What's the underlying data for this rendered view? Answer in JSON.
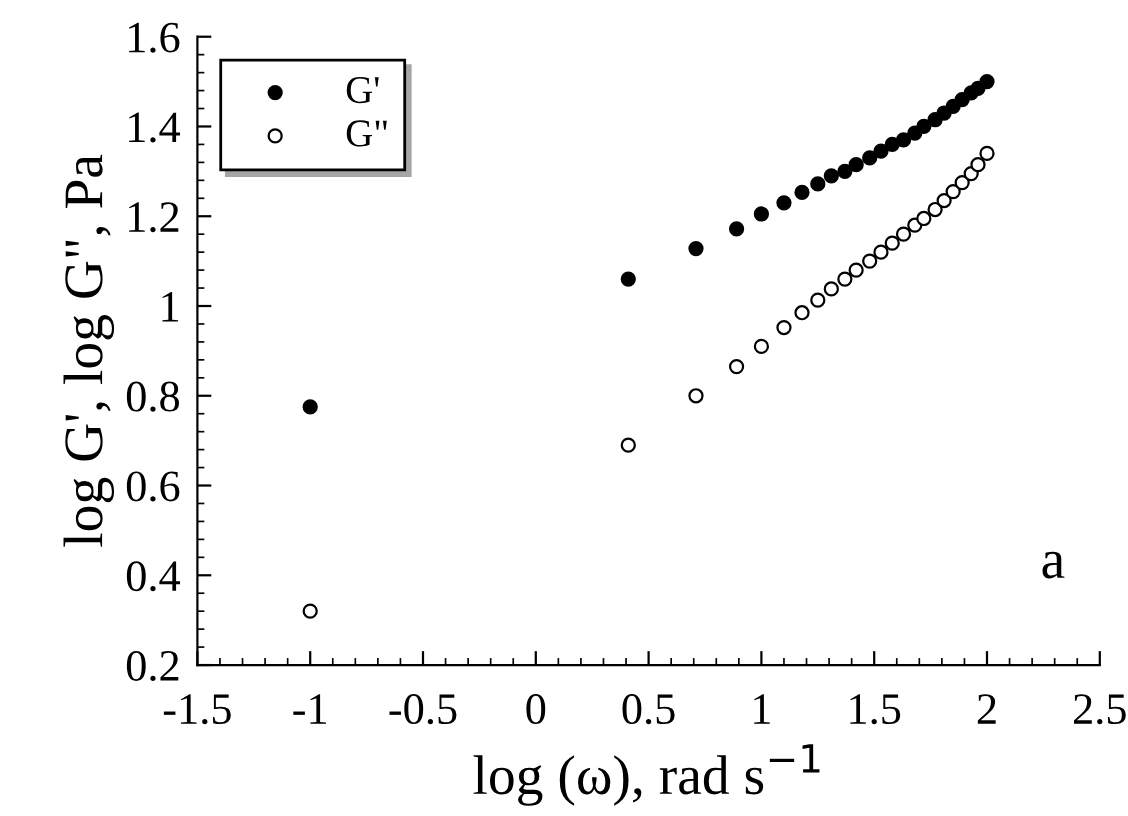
{
  "chart_data": {
    "type": "scatter",
    "xlabel": "log (ω), rad s$^{−1}$",
    "ylabel": "log G', log G\", Pa",
    "x": [
      -1,
      0.41,
      0.71,
      0.89,
      1.0,
      1.1,
      1.18,
      1.25,
      1.31,
      1.37,
      1.42,
      1.48,
      1.53,
      1.58,
      1.63,
      1.68,
      1.72,
      1.77,
      1.81,
      1.85,
      1.89,
      1.93,
      1.96,
      2.0
    ],
    "series": [
      {
        "name": "G'",
        "color": "#000000",
        "marker": "circle",
        "values": [
          0.775,
          1.06,
          1.128,
          1.172,
          1.205,
          1.23,
          1.253,
          1.272,
          1.29,
          1.3,
          1.315,
          1.33,
          1.345,
          1.36,
          1.37,
          1.385,
          1.4,
          1.415,
          1.43,
          1.445,
          1.46,
          1.475,
          1.485,
          1.5
        ]
      },
      {
        "name": "G\"",
        "color": "#ffffff",
        "marker": "circle",
        "values": [
          0.32,
          0.69,
          0.8,
          0.865,
          0.91,
          0.952,
          0.985,
          1.013,
          1.038,
          1.06,
          1.08,
          1.1,
          1.12,
          1.14,
          1.16,
          1.18,
          1.195,
          1.215,
          1.235,
          1.255,
          1.275,
          1.295,
          1.315,
          1.34
        ]
      }
    ],
    "xlim": [
      -1.5,
      2.5
    ],
    "xticks": [
      -1.5,
      -1,
      -0.5,
      0,
      0.5,
      1,
      1.5,
      2,
      2.5
    ],
    "ylim": [
      0.2,
      1.6
    ],
    "yticks": [
      0.2,
      0.4,
      0.6,
      0.8,
      1,
      1.2,
      1.4,
      1.6
    ],
    "annotations": [
      "a"
    ],
    "grid": false,
    "legend": "top left"
  }
}
